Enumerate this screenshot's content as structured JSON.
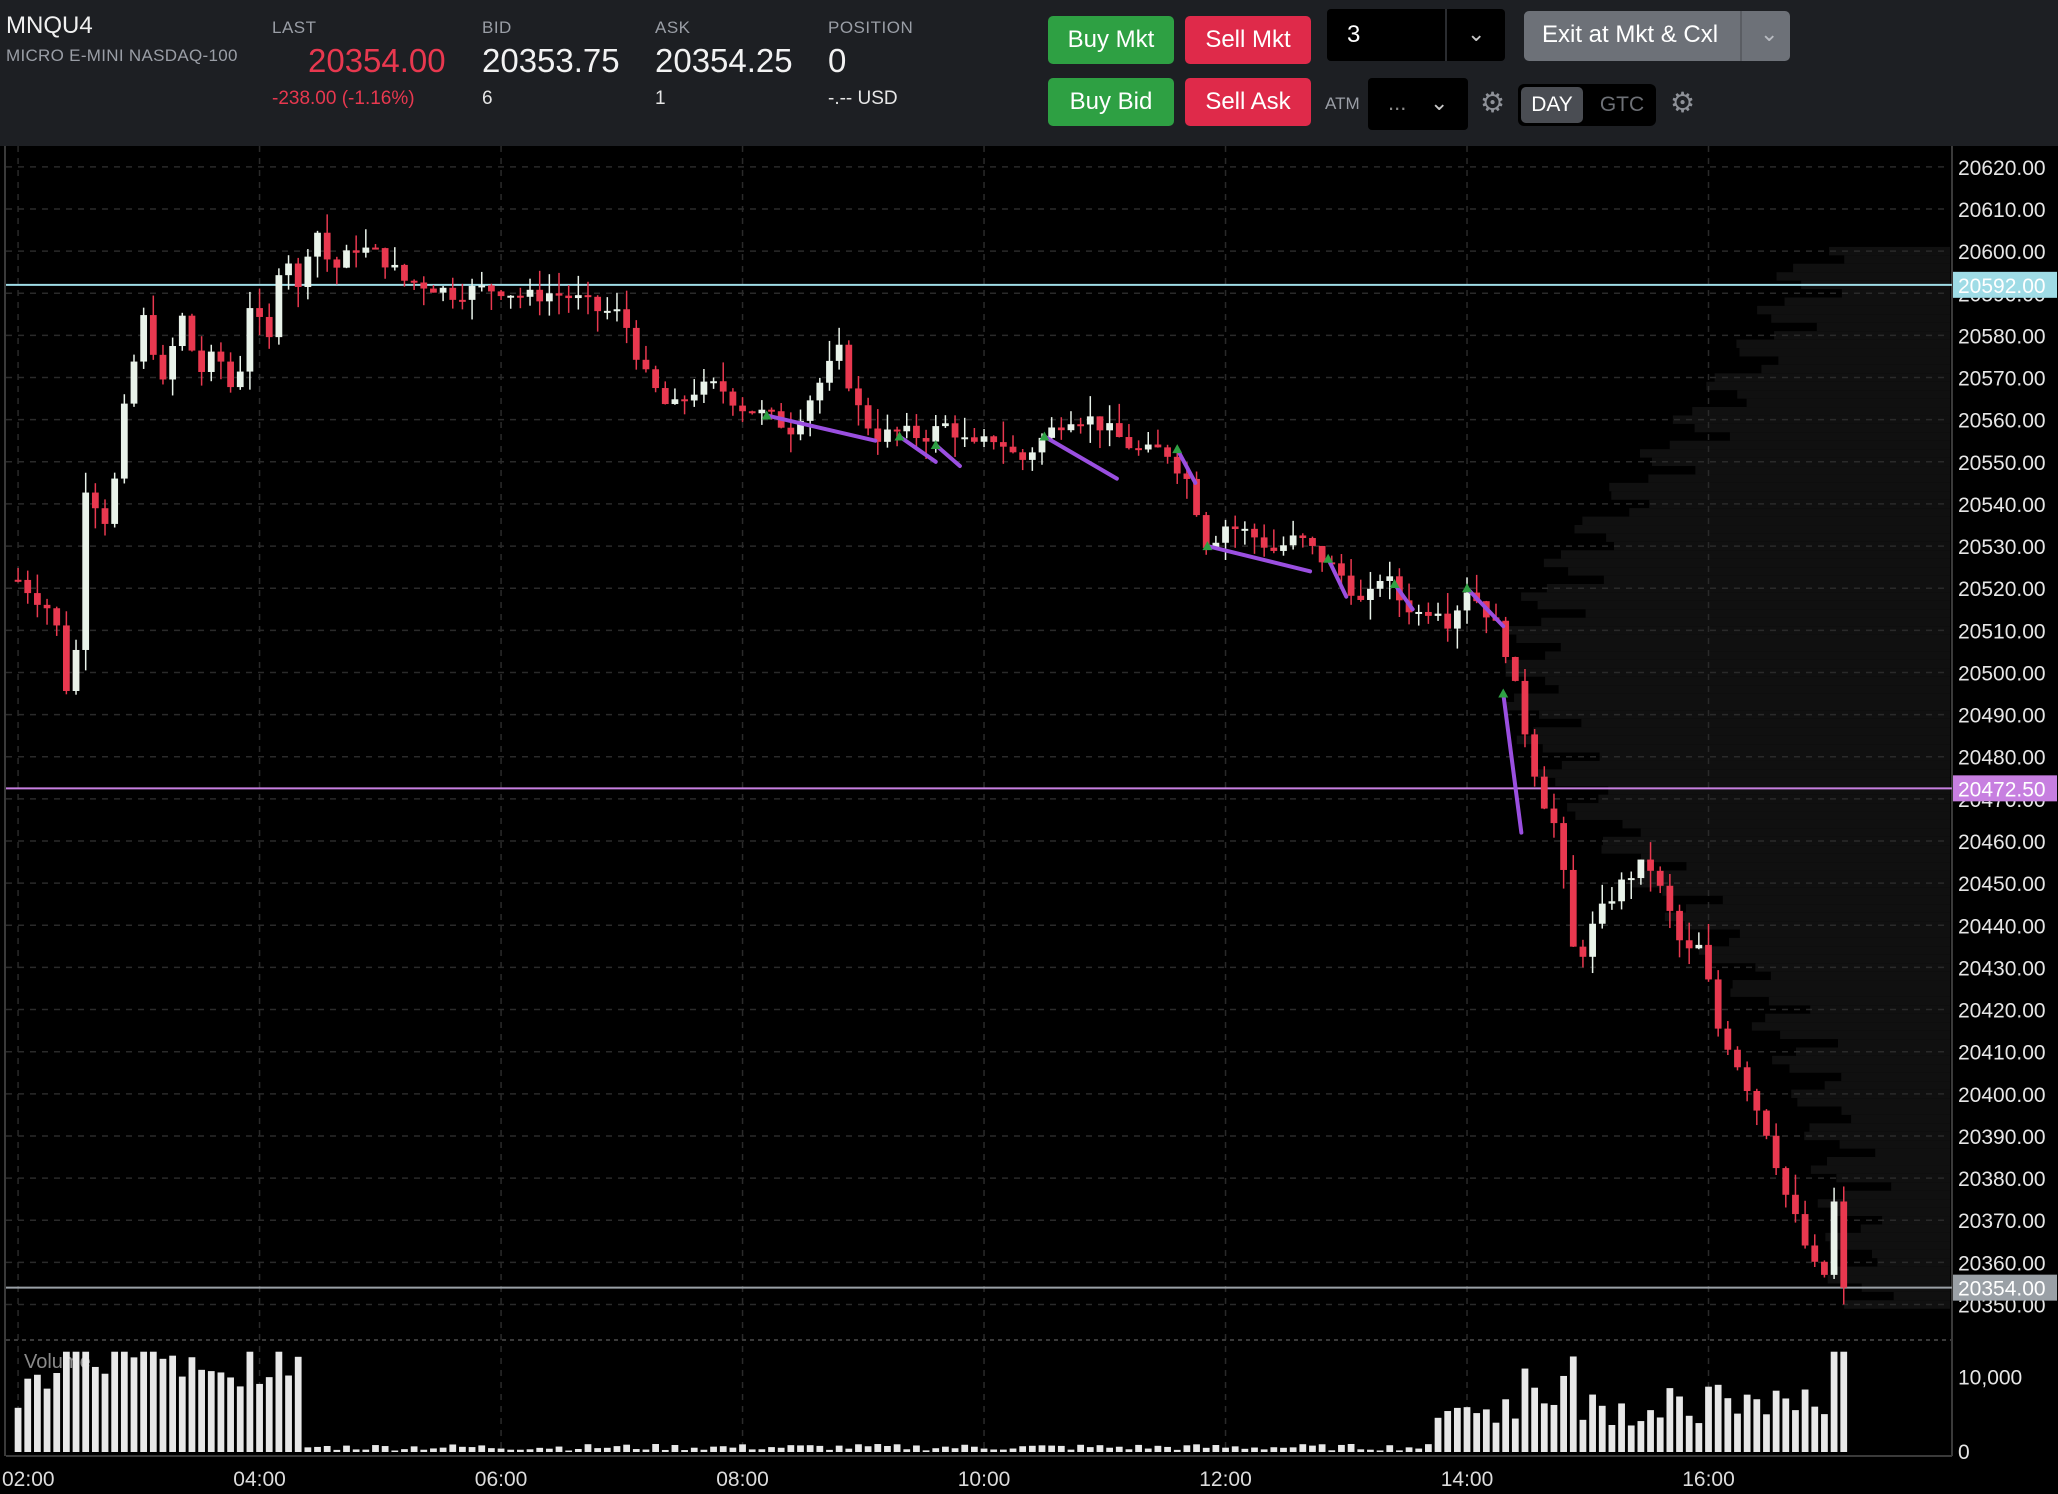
{
  "header": {
    "symbol": "MNQU4",
    "description": "MICRO E-MINI NASDAQ-100",
    "last_label": "LAST",
    "last_value": "20354.00",
    "last_change": "-238.00 (-1.16%)",
    "bid_label": "BID",
    "bid_value": "20353.75",
    "bid_size": "6",
    "ask_label": "ASK",
    "ask_value": "20354.25",
    "ask_size": "1",
    "position_label": "POSITION",
    "position_value": "0",
    "position_pnl": "-.-- USD"
  },
  "order_entry": {
    "buy_mkt": "Buy Mkt",
    "sell_mkt": "Sell Mkt",
    "buy_bid": "Buy Bid",
    "sell_ask": "Sell Ask",
    "quantity": "3",
    "exit_label": "Exit at Mkt & Cxl",
    "atm_label": "ATM",
    "atm_value": "...",
    "tif_day": "DAY",
    "tif_gtc": "GTC"
  },
  "colors": {
    "up": "#e9f3ea",
    "down": "#e8384f",
    "cyan_line": "#9fdce6",
    "purple_line": "#c77fe0",
    "last_line": "#9aa0a6",
    "trend": "#9a4fe0",
    "green_btn": "#2ea043",
    "red_btn": "#df2a4a"
  },
  "chart_data": {
    "type": "candlestick",
    "symbol": "MNQU4",
    "x_ticks": [
      "02:00",
      "04:00",
      "06:00",
      "08:00",
      "10:00",
      "12:00",
      "14:00",
      "16:00"
    ],
    "x_tick_hours": [
      2,
      4,
      6,
      8,
      10,
      12,
      14,
      16
    ],
    "x_range_hours": [
      2.0,
      18.0
    ],
    "y_range": [
      20343,
      20624
    ],
    "y_ticks": [
      "20620.00",
      "20610.00",
      "20600.00",
      "20590.00",
      "20580.00",
      "20570.00",
      "20560.00",
      "20550.00",
      "20540.00",
      "20530.00",
      "20520.00",
      "20510.00",
      "20500.00",
      "20490.00",
      "20480.00",
      "20470.00",
      "20460.00",
      "20450.00",
      "20440.00",
      "20430.00",
      "20420.00",
      "20410.00",
      "20400.00",
      "20390.00",
      "20380.00",
      "20370.00",
      "20360.00",
      "20350.00"
    ],
    "y_tick_values": [
      20620,
      20610,
      20600,
      20590,
      20580,
      20570,
      20560,
      20550,
      20540,
      20530,
      20520,
      20510,
      20500,
      20490,
      20480,
      20470,
      20460,
      20450,
      20440,
      20430,
      20420,
      20410,
      20400,
      20390,
      20380,
      20370,
      20360,
      20350
    ],
    "price_lines": [
      {
        "value": 20592.0,
        "label": "20592.00",
        "color": "#9fdce6"
      },
      {
        "value": 20472.5,
        "label": "20472.50",
        "color": "#c77fe0"
      },
      {
        "value": 20354.0,
        "label": "20354.00",
        "color": "#9aa0a6"
      }
    ],
    "anchors": [
      [
        2.0,
        20522
      ],
      [
        2.3,
        20514
      ],
      [
        2.45,
        20488
      ],
      [
        2.55,
        20545
      ],
      [
        2.75,
        20535
      ],
      [
        2.9,
        20566
      ],
      [
        3.05,
        20585
      ],
      [
        3.2,
        20568
      ],
      [
        3.35,
        20585
      ],
      [
        3.5,
        20571
      ],
      [
        3.65,
        20576
      ],
      [
        3.8,
        20565
      ],
      [
        3.95,
        20593
      ],
      [
        4.05,
        20572
      ],
      [
        4.2,
        20605
      ],
      [
        4.3,
        20588
      ],
      [
        4.45,
        20607
      ],
      [
        4.6,
        20595
      ],
      [
        4.8,
        20601
      ],
      [
        5.0,
        20599
      ],
      [
        5.2,
        20593
      ],
      [
        5.4,
        20592
      ],
      [
        5.6,
        20590
      ],
      [
        5.8,
        20591
      ],
      [
        6.0,
        20591
      ],
      [
        6.2,
        20589
      ],
      [
        6.4,
        20590
      ],
      [
        6.6,
        20589
      ],
      [
        6.8,
        20586
      ],
      [
        7.0,
        20585
      ],
      [
        7.2,
        20570
      ],
      [
        7.4,
        20562
      ],
      [
        7.6,
        20567
      ],
      [
        7.8,
        20568
      ],
      [
        8.0,
        20563
      ],
      [
        8.2,
        20561
      ],
      [
        8.4,
        20558
      ],
      [
        8.6,
        20567
      ],
      [
        8.8,
        20576
      ],
      [
        8.95,
        20563
      ],
      [
        9.1,
        20556
      ],
      [
        9.3,
        20557
      ],
      [
        9.5,
        20556
      ],
      [
        9.7,
        20559
      ],
      [
        9.9,
        20553
      ],
      [
        10.1,
        20556
      ],
      [
        10.3,
        20550
      ],
      [
        10.5,
        20556
      ],
      [
        10.7,
        20561
      ],
      [
        10.9,
        20560
      ],
      [
        11.1,
        20556
      ],
      [
        11.3,
        20552
      ],
      [
        11.5,
        20553
      ],
      [
        11.7,
        20545
      ],
      [
        11.85,
        20530
      ],
      [
        12.0,
        20535
      ],
      [
        12.2,
        20533
      ],
      [
        12.4,
        20529
      ],
      [
        12.6,
        20532
      ],
      [
        12.8,
        20527
      ],
      [
        13.0,
        20522
      ],
      [
        13.15,
        20515
      ],
      [
        13.3,
        20524
      ],
      [
        13.45,
        20517
      ],
      [
        13.6,
        20514
      ],
      [
        13.75,
        20516
      ],
      [
        13.85,
        20512
      ],
      [
        14.0,
        20520
      ],
      [
        14.15,
        20515
      ],
      [
        14.3,
        20508
      ],
      [
        14.45,
        20490
      ],
      [
        14.6,
        20472
      ],
      [
        14.75,
        20462
      ],
      [
        14.9,
        20430
      ],
      [
        15.05,
        20440
      ],
      [
        15.2,
        20447
      ],
      [
        15.35,
        20452
      ],
      [
        15.5,
        20455
      ],
      [
        15.65,
        20445
      ],
      [
        15.8,
        20433
      ],
      [
        15.95,
        20435
      ],
      [
        16.05,
        20417
      ],
      [
        16.2,
        20410
      ],
      [
        16.35,
        20400
      ],
      [
        16.5,
        20390
      ],
      [
        16.65,
        20375
      ],
      [
        16.75,
        20368
      ],
      [
        16.85,
        20360
      ],
      [
        16.95,
        20355
      ],
      [
        17.05,
        20376
      ],
      [
        17.15,
        20354
      ]
    ],
    "trend_segments": [
      [
        [
          8.2,
          20561
        ],
        [
          9.1,
          20555
        ]
      ],
      [
        [
          9.3,
          20556
        ],
        [
          9.6,
          20550
        ]
      ],
      [
        [
          9.6,
          20554
        ],
        [
          9.8,
          20549
        ]
      ],
      [
        [
          10.5,
          20556
        ],
        [
          11.1,
          20546
        ]
      ],
      [
        [
          11.6,
          20553
        ],
        [
          11.75,
          20545
        ]
      ],
      [
        [
          11.85,
          20530
        ],
        [
          12.7,
          20524
        ]
      ],
      [
        [
          12.85,
          20527
        ],
        [
          13.0,
          20518
        ]
      ],
      [
        [
          13.4,
          20521
        ],
        [
          13.55,
          20515
        ]
      ],
      [
        [
          14.0,
          20520
        ],
        [
          14.3,
          20511
        ]
      ],
      [
        [
          14.3,
          20495
        ],
        [
          14.45,
          20462
        ]
      ]
    ],
    "volume": {
      "label": "Volume",
      "y_ticks": [
        "10,000",
        "0"
      ],
      "y_tick_values": [
        10000,
        0
      ],
      "y_max": 14000
    }
  }
}
